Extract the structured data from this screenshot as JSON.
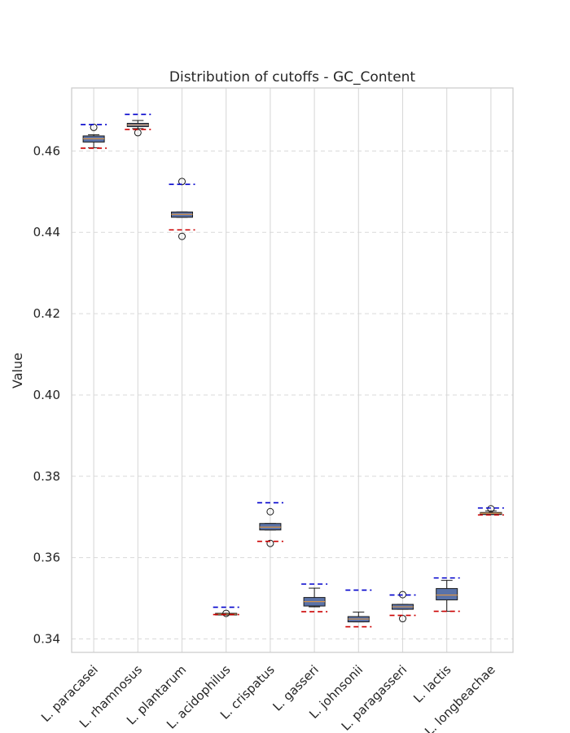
{
  "chart_data": {
    "type": "boxplot",
    "title": "Distribution of cutoffs - GC_Content",
    "xlabel": "",
    "ylabel": "Value",
    "ylim": [
      0.3367,
      0.4755
    ],
    "yticks": [
      "0.34",
      "0.36",
      "0.38",
      "0.40",
      "0.42",
      "0.44",
      "0.46"
    ],
    "grid": true,
    "categories": [
      "L. paracasei",
      "L. rhamnosus",
      "L. plantarum",
      "L. acidophilus",
      "L. crispatus",
      "L. gasseri",
      "L. johnsonii",
      "L. paragasseri",
      "L. lactis",
      "L. longbeachae"
    ],
    "boxes": [
      {
        "whislo": 0.4608,
        "q1": 0.4622,
        "med": 0.463,
        "q3": 0.4637,
        "whishi": 0.464,
        "fliers": [
          0.4658
        ],
        "upper_cutoff": 0.4665,
        "lower_cutoff": 0.4607
      },
      {
        "whislo": 0.4655,
        "q1": 0.466,
        "med": 0.4664,
        "q3": 0.4668,
        "whishi": 0.4675,
        "fliers": [
          0.4645
        ],
        "upper_cutoff": 0.469,
        "lower_cutoff": 0.4653
      },
      {
        "whislo": 0.4437,
        "q1": 0.4437,
        "med": 0.4444,
        "q3": 0.445,
        "whishi": 0.445,
        "fliers": [
          0.4525,
          0.439
        ],
        "upper_cutoff": 0.4518,
        "lower_cutoff": 0.4406
      },
      {
        "whislo": 0.3461,
        "q1": 0.3461,
        "med": 0.3461,
        "q3": 0.3461,
        "whishi": 0.3461,
        "fliers": [
          0.3463
        ],
        "upper_cutoff": 0.3478,
        "lower_cutoff": 0.346
      },
      {
        "whislo": 0.3668,
        "q1": 0.3668,
        "med": 0.3675,
        "q3": 0.3684,
        "whishi": 0.3684,
        "fliers": [
          0.3713,
          0.3635
        ],
        "upper_cutoff": 0.3735,
        "lower_cutoff": 0.364
      },
      {
        "whislo": 0.3479,
        "q1": 0.3481,
        "med": 0.3492,
        "q3": 0.3502,
        "whishi": 0.3525,
        "fliers": [],
        "upper_cutoff": 0.3535,
        "lower_cutoff": 0.3467
      },
      {
        "whislo": 0.3442,
        "q1": 0.3442,
        "med": 0.3449,
        "q3": 0.3455,
        "whishi": 0.3466,
        "fliers": [],
        "upper_cutoff": 0.352,
        "lower_cutoff": 0.343
      },
      {
        "whislo": 0.3473,
        "q1": 0.3473,
        "med": 0.3479,
        "q3": 0.3485,
        "whishi": 0.3485,
        "fliers": [
          0.3509,
          0.345
        ],
        "upper_cutoff": 0.3508,
        "lower_cutoff": 0.3458
      },
      {
        "whislo": 0.3468,
        "q1": 0.3496,
        "med": 0.3508,
        "q3": 0.3524,
        "whishi": 0.3544,
        "fliers": [],
        "upper_cutoff": 0.355,
        "lower_cutoff": 0.3468
      },
      {
        "whislo": 0.3706,
        "q1": 0.3706,
        "med": 0.3709,
        "q3": 0.3711,
        "whishi": 0.3715,
        "fliers": [
          0.372
        ],
        "upper_cutoff": 0.3722,
        "lower_cutoff": 0.3705
      }
    ],
    "colors": {
      "box_fill": "#5a72a8",
      "box_edge": "#1a1a1a",
      "median": "#d8954a",
      "upper_cutoff": "#0000cc",
      "lower_cutoff": "#cc0000",
      "grid": "#d9d9d9",
      "frame": "#cccccc",
      "text": "#262626"
    }
  }
}
